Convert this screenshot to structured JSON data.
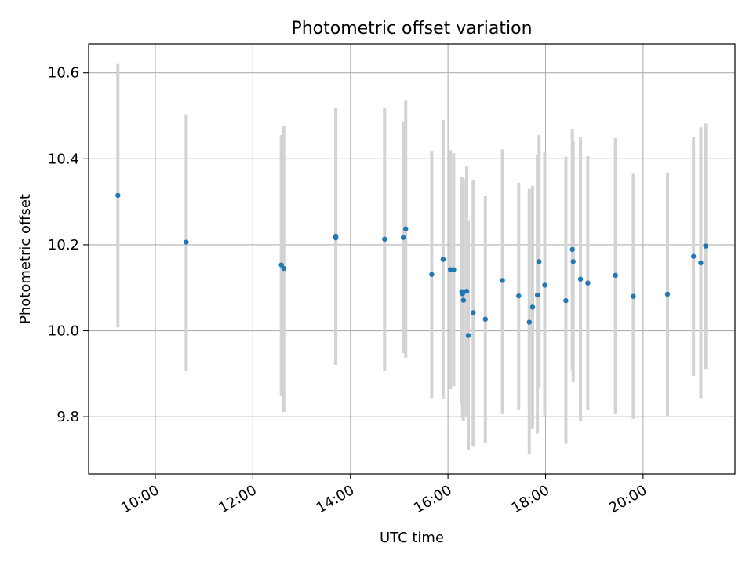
{
  "chart_data": {
    "type": "scatter",
    "title": "Photometric offset variation",
    "xlabel": "UTC time",
    "ylabel": "Photometric offset",
    "x_unit": "hours UTC",
    "xlim": [
      "08:38",
      "21:53"
    ],
    "ylim": [
      9.667,
      10.667
    ],
    "x_ticks": [
      "10:00",
      "12:00",
      "14:00",
      "16:00",
      "18:00",
      "20:00"
    ],
    "y_ticks": [
      "9.8",
      "10.0",
      "10.2",
      "10.4",
      "10.6"
    ],
    "grid": true,
    "point_color": "#1f77b4",
    "errorbar_color": "#d3d3d3",
    "points": [
      {
        "x": "09:14",
        "y": 10.315,
        "ylow": 10.008,
        "yhigh": 10.622
      },
      {
        "x": "10:38",
        "y": 10.206,
        "ylow": 9.906,
        "yhigh": 10.504
      },
      {
        "x": "12:35",
        "y": 10.153,
        "ylow": 9.848,
        "yhigh": 10.455
      },
      {
        "x": "12:38",
        "y": 10.145,
        "ylow": 9.811,
        "yhigh": 10.477
      },
      {
        "x": "13:42",
        "y": 10.22,
        "ylow": 9.921,
        "yhigh": 10.518
      },
      {
        "x": "13:42",
        "y": 10.216,
        "ylow": 9.921,
        "yhigh": 10.518
      },
      {
        "x": "14:42",
        "y": 10.213,
        "ylow": 9.906,
        "yhigh": 10.518
      },
      {
        "x": "15:05",
        "y": 10.217,
        "ylow": 9.948,
        "yhigh": 10.486
      },
      {
        "x": "15:08",
        "y": 10.237,
        "ylow": 9.937,
        "yhigh": 10.535
      },
      {
        "x": "15:40",
        "y": 10.131,
        "ylow": 9.843,
        "yhigh": 10.417
      },
      {
        "x": "15:54",
        "y": 10.166,
        "ylow": 9.842,
        "yhigh": 10.49
      },
      {
        "x": "16:03",
        "y": 10.142,
        "ylow": 9.864,
        "yhigh": 10.42
      },
      {
        "x": "16:07",
        "y": 10.142,
        "ylow": 9.871,
        "yhigh": 10.413
      },
      {
        "x": "16:17",
        "y": 10.091,
        "ylow": 9.828,
        "yhigh": 10.358
      },
      {
        "x": "16:18",
        "y": 10.086,
        "ylow": 9.797,
        "yhigh": 10.346
      },
      {
        "x": "16:19",
        "y": 10.071,
        "ylow": 9.79,
        "yhigh": 10.353
      },
      {
        "x": "16:23",
        "y": 10.092,
        "ylow": 9.8,
        "yhigh": 10.382
      },
      {
        "x": "16:25",
        "y": 9.989,
        "ylow": 9.723,
        "yhigh": 10.257
      },
      {
        "x": "16:31",
        "y": 10.042,
        "ylow": 9.732,
        "yhigh": 10.35
      },
      {
        "x": "16:46",
        "y": 10.027,
        "ylow": 9.74,
        "yhigh": 10.313
      },
      {
        "x": "17:07",
        "y": 10.117,
        "ylow": 9.808,
        "yhigh": 10.422
      },
      {
        "x": "17:27",
        "y": 10.081,
        "ylow": 9.816,
        "yhigh": 10.344
      },
      {
        "x": "17:40",
        "y": 10.02,
        "ylow": 9.713,
        "yhigh": 10.33
      },
      {
        "x": "17:44",
        "y": 10.055,
        "ylow": 9.771,
        "yhigh": 10.337
      },
      {
        "x": "17:50",
        "y": 10.083,
        "ylow": 9.761,
        "yhigh": 10.408
      },
      {
        "x": "17:52",
        "y": 10.161,
        "ylow": 9.867,
        "yhigh": 10.455
      },
      {
        "x": "17:59",
        "y": 10.106,
        "ylow": 9.804,
        "yhigh": 10.415
      },
      {
        "x": "18:25",
        "y": 10.07,
        "ylow": 9.737,
        "yhigh": 10.405
      },
      {
        "x": "18:33",
        "y": 10.189,
        "ylow": 9.906,
        "yhigh": 10.47
      },
      {
        "x": "18:34",
        "y": 10.161,
        "ylow": 9.88,
        "yhigh": 10.44
      },
      {
        "x": "18:43",
        "y": 10.12,
        "ylow": 9.791,
        "yhigh": 10.45
      },
      {
        "x": "18:52",
        "y": 10.111,
        "ylow": 9.816,
        "yhigh": 10.406
      },
      {
        "x": "19:26",
        "y": 10.129,
        "ylow": 9.808,
        "yhigh": 10.448
      },
      {
        "x": "19:48",
        "y": 10.08,
        "ylow": 9.795,
        "yhigh": 10.365
      },
      {
        "x": "20:30",
        "y": 10.085,
        "ylow": 9.802,
        "yhigh": 10.368
      },
      {
        "x": "21:02",
        "y": 10.173,
        "ylow": 9.895,
        "yhigh": 10.451
      },
      {
        "x": "21:11",
        "y": 10.158,
        "ylow": 9.843,
        "yhigh": 10.473
      },
      {
        "x": "21:17",
        "y": 10.197,
        "ylow": 9.911,
        "yhigh": 10.482
      }
    ]
  }
}
